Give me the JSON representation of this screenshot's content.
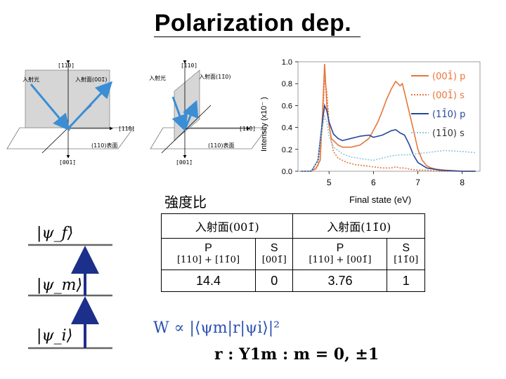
{
  "title": "Polarization dep.",
  "diagram1": {
    "axis_top": "[110]",
    "incident_light": "入射光",
    "incident_plane": "入射面(001̄)",
    "axis_right": "[11̄0]",
    "surface": "(110)表面",
    "axis_bottom": "[001̄]"
  },
  "diagram2": {
    "axis_top": "[110]",
    "incident_light": "入射光",
    "incident_plane": "入射面(11̄0)",
    "axis_right": "[11̄0]",
    "surface": "(110)表面",
    "axis_bottom": "[001̄]"
  },
  "chart_data": {
    "type": "line",
    "xlabel": "Final state (eV)",
    "ylabel": "Intensity (x10⁻ )",
    "xlim": [
      4.3,
      8.4
    ],
    "ylim": [
      0.0,
      1.0
    ],
    "xticks": [
      5,
      6,
      7,
      8
    ],
    "yticks": [
      0.0,
      0.2,
      0.4,
      0.6,
      0.8,
      1.0
    ],
    "legend_position": "top-right",
    "series": [
      {
        "name": "(001̄) p",
        "color": "#e8753a",
        "dash": "solid",
        "x": [
          4.35,
          4.55,
          4.7,
          4.8,
          4.85,
          4.9,
          4.95,
          5.0,
          5.05,
          5.1,
          5.2,
          5.3,
          5.5,
          5.7,
          5.9,
          6.1,
          6.2,
          6.3,
          6.4,
          6.5,
          6.6,
          6.65,
          6.7,
          6.8,
          6.9,
          7.0,
          7.1,
          7.2,
          7.3,
          7.4,
          7.6,
          8.0,
          8.3
        ],
        "y": [
          0.0,
          0.0,
          0.02,
          0.1,
          0.5,
          0.98,
          0.6,
          0.42,
          0.3,
          0.28,
          0.24,
          0.22,
          0.22,
          0.24,
          0.3,
          0.45,
          0.55,
          0.66,
          0.75,
          0.82,
          0.78,
          0.8,
          0.72,
          0.55,
          0.38,
          0.2,
          0.1,
          0.05,
          0.03,
          0.02,
          0.01,
          0.0,
          0.0
        ]
      },
      {
        "name": "(001̄) s",
        "color": "#e8753a",
        "dash": "dotted",
        "x": [
          4.35,
          4.6,
          4.75,
          4.85,
          4.9,
          4.95,
          5.0,
          5.05,
          5.1,
          5.2,
          5.4,
          5.6,
          5.8,
          6.0,
          6.2,
          6.4,
          6.5,
          6.6,
          6.7,
          6.8,
          7.0,
          7.2,
          7.5,
          8.3
        ],
        "y": [
          0.0,
          0.0,
          0.05,
          0.4,
          0.85,
          0.72,
          0.45,
          0.28,
          0.18,
          0.12,
          0.08,
          0.06,
          0.05,
          0.04,
          0.03,
          0.03,
          0.04,
          0.03,
          0.03,
          0.02,
          0.01,
          0.01,
          0.0,
          0.0
        ]
      },
      {
        "name": "(11̄0) p",
        "color": "#27489c",
        "dash": "solid",
        "x": [
          4.35,
          4.6,
          4.75,
          4.85,
          4.9,
          4.95,
          5.0,
          5.1,
          5.2,
          5.3,
          5.5,
          5.7,
          5.9,
          6.0,
          6.2,
          6.4,
          6.5,
          6.6,
          6.7,
          6.8,
          6.9,
          7.0,
          7.2,
          7.5,
          8.0,
          8.3
        ],
        "y": [
          0.0,
          0.0,
          0.1,
          0.45,
          0.6,
          0.55,
          0.45,
          0.34,
          0.3,
          0.28,
          0.3,
          0.32,
          0.33,
          0.31,
          0.33,
          0.37,
          0.38,
          0.35,
          0.33,
          0.25,
          0.15,
          0.08,
          0.03,
          0.01,
          0.0,
          0.0
        ]
      },
      {
        "name": "(11̄0) s",
        "color": "#8ec7dc",
        "dash": "dotted",
        "x": [
          4.35,
          4.6,
          4.75,
          4.85,
          4.9,
          4.95,
          5.0,
          5.1,
          5.3,
          5.5,
          5.8,
          6.0,
          6.2,
          6.4,
          6.6,
          6.8,
          7.0,
          7.2,
          7.4,
          7.6,
          8.0,
          8.3
        ],
        "y": [
          0.0,
          0.0,
          0.1,
          0.4,
          0.5,
          0.45,
          0.32,
          0.22,
          0.16,
          0.13,
          0.11,
          0.1,
          0.12,
          0.14,
          0.15,
          0.15,
          0.16,
          0.17,
          0.18,
          0.19,
          0.18,
          0.17
        ]
      }
    ]
  },
  "chart_ticks_x": [
    "5",
    "6",
    "7",
    "8"
  ],
  "chart_ticks_y": [
    "0.0",
    "0.2",
    "0.4",
    "0.6",
    "0.8",
    "1.0"
  ],
  "ratio_label": "強度比",
  "table": {
    "col1_header": "入射面(001̄)",
    "col2_header": "入射面(11̄0)",
    "sub": [
      {
        "pol": "P",
        "dirs": "[110] + [11̄0]"
      },
      {
        "pol": "S",
        "dirs": "[001̄]"
      },
      {
        "pol": "P",
        "dirs": "[110] + [001̄]"
      },
      {
        "pol": "S",
        "dirs": "[11̄0]"
      }
    ],
    "values": [
      "14.4",
      "0",
      "3.76",
      "1"
    ]
  },
  "levels": {
    "f": "|ψ_f⟩",
    "m": "|ψ_m⟩",
    "i": "|ψ_i⟩"
  },
  "formula1": "W ∝ |⟨ψm|r|ψi⟩|²",
  "formula2": "r : Y1m : m = 0, ±1"
}
